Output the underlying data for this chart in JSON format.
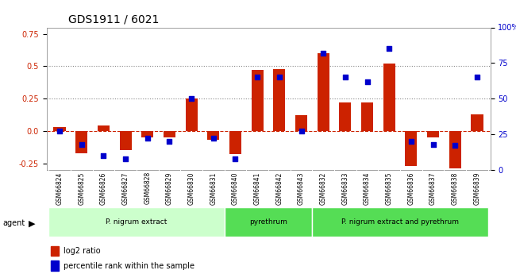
{
  "title": "GDS1911 / 6021",
  "samples": [
    "GSM66824",
    "GSM66825",
    "GSM66826",
    "GSM66827",
    "GSM66828",
    "GSM66829",
    "GSM66830",
    "GSM66831",
    "GSM66840",
    "GSM66841",
    "GSM66842",
    "GSM66843",
    "GSM66832",
    "GSM66833",
    "GSM66834",
    "GSM66835",
    "GSM66836",
    "GSM66837",
    "GSM66838",
    "GSM66839"
  ],
  "log2_ratio": [
    0.03,
    -0.17,
    0.04,
    -0.15,
    -0.05,
    -0.05,
    0.25,
    -0.07,
    -0.18,
    0.47,
    0.48,
    0.12,
    0.6,
    0.22,
    0.22,
    0.52,
    -0.27,
    -0.05,
    -0.29,
    0.13
  ],
  "pct_rank": [
    27,
    18,
    10,
    8,
    22,
    20,
    50,
    22,
    8,
    65,
    65,
    27,
    82,
    65,
    62,
    85,
    20,
    18,
    17,
    65
  ],
  "groups": [
    {
      "label": "P. nigrum extract",
      "start": 0,
      "end": 8,
      "color": "#aaffaa"
    },
    {
      "label": "pyrethrum",
      "start": 8,
      "end": 12,
      "color": "#55ee55"
    },
    {
      "label": "P. nigrum extract and pyrethrum",
      "start": 12,
      "end": 20,
      "color": "#55ee55"
    }
  ],
  "bar_color": "#cc2200",
  "dot_color": "#0000cc",
  "ylim_left": [
    -0.3,
    0.8
  ],
  "ylim_right": [
    0,
    100
  ],
  "yticks_left": [
    -0.25,
    0.0,
    0.25,
    0.5,
    0.75
  ],
  "yticks_right": [
    0,
    25,
    50,
    75,
    100
  ],
  "hlines": [
    0.0,
    0.25,
    0.5
  ],
  "hline_styles": [
    "--",
    ":",
    ":"
  ],
  "background_color": "#ffffff",
  "tick_area_color": "#cccccc"
}
